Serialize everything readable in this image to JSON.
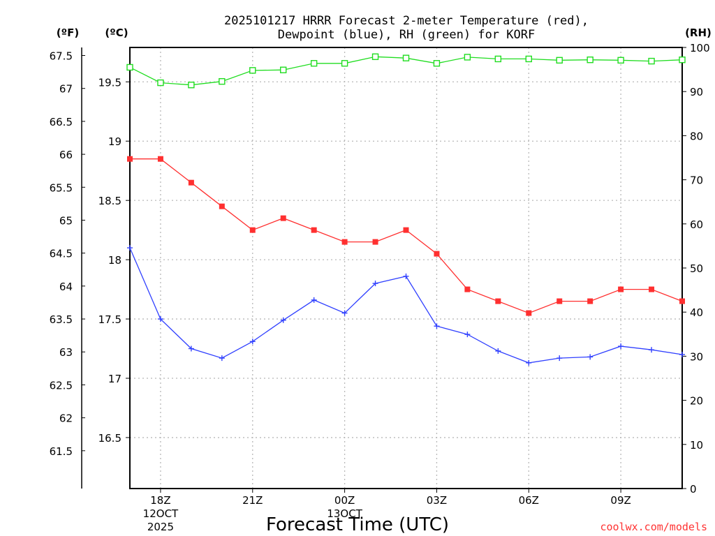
{
  "chart_data": {
    "type": "line",
    "title": [
      "2025101217 HRRR Forecast 2-meter Temperature (red),",
      "Dewpoint (blue), RH (green) for KORF"
    ],
    "xlabel": "Forecast Time (UTC)",
    "credit": "coolwx.com/models",
    "x_hours": [
      0,
      1,
      2,
      3,
      4,
      5,
      6,
      7,
      8,
      9,
      10,
      11,
      12,
      13,
      14,
      15,
      16,
      17,
      18
    ],
    "xlim": [
      0,
      18
    ],
    "x_ticks": [
      {
        "hour": 1,
        "lines": [
          "18Z",
          "12OCT",
          "2025"
        ]
      },
      {
        "hour": 4,
        "lines": [
          "21Z"
        ]
      },
      {
        "hour": 7,
        "lines": [
          "00Z",
          "13OCT"
        ]
      },
      {
        "hour": 10,
        "lines": [
          "03Z"
        ]
      },
      {
        "hour": 13,
        "lines": [
          "06Z"
        ]
      },
      {
        "hour": 16,
        "lines": [
          "09Z"
        ]
      }
    ],
    "units": {
      "fahrenheit": "(ºF)",
      "celsius": "(ºC)",
      "rh": "(RH)"
    },
    "celsius_axis": {
      "lim": [
        16.07,
        19.79
      ],
      "ticks": [
        16.5,
        17,
        17.5,
        18,
        18.5,
        19,
        19.5
      ],
      "tick_labels": [
        "16.5",
        "17",
        "17.5",
        "18",
        "18.5",
        "19",
        "19.5"
      ]
    },
    "fahrenheit_axis": {
      "ticks": [
        61.5,
        62,
        62.5,
        63,
        63.5,
        64,
        64.5,
        65,
        65.5,
        66,
        66.5,
        67,
        67.5
      ],
      "tick_labels": [
        "61.5",
        "62",
        "62.5",
        "63",
        "63.5",
        "64",
        "64.5",
        "65",
        "65.5",
        "66",
        "66.5",
        "67",
        "67.5"
      ]
    },
    "rh_axis": {
      "lim": [
        0,
        100
      ],
      "ticks": [
        0,
        10,
        20,
        30,
        40,
        50,
        60,
        70,
        80,
        90,
        100
      ],
      "tick_labels": [
        "0",
        "10",
        "20",
        "30",
        "40",
        "50",
        "60",
        "70",
        "80",
        "90",
        "100"
      ]
    },
    "grid": true,
    "series": [
      {
        "name": "Temperature",
        "axis": "celsius",
        "color": "#ff3030",
        "marker": "filled-square",
        "values": [
          18.85,
          18.85,
          18.65,
          18.45,
          18.25,
          18.35,
          18.25,
          18.15,
          18.15,
          18.25,
          18.05,
          17.75,
          17.65,
          17.55,
          17.65,
          17.65,
          17.75,
          17.75,
          17.65
        ]
      },
      {
        "name": "Dewpoint",
        "axis": "celsius",
        "color": "#3040ff",
        "marker": "plus",
        "values": [
          18.1,
          17.5,
          17.25,
          17.17,
          17.31,
          17.49,
          17.66,
          17.55,
          17.8,
          17.86,
          17.44,
          17.37,
          17.23,
          17.13,
          17.17,
          17.18,
          17.27,
          17.24,
          17.2
        ]
      },
      {
        "name": "RH",
        "axis": "rh",
        "color": "#20dd20",
        "marker": "open-square",
        "values": [
          95.5,
          92,
          91.5,
          92.3,
          94.8,
          94.9,
          96.4,
          96.4,
          97.9,
          97.6,
          96.4,
          97.8,
          97.4,
          97.4,
          97.1,
          97.2,
          97.1,
          96.9,
          97.2
        ]
      }
    ]
  }
}
